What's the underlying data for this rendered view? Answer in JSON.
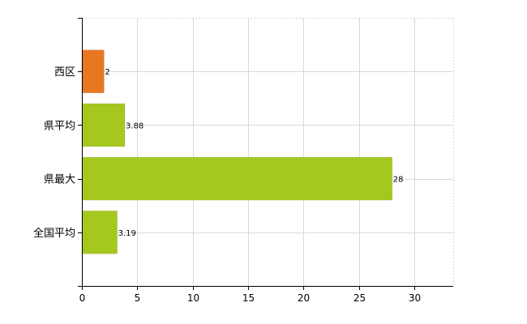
{
  "chart_data": {
    "type": "bar",
    "orientation": "horizontal",
    "categories": [
      "西区",
      "県平均",
      "県最大",
      "全国平均"
    ],
    "values": [
      2,
      3.88,
      28,
      3.19
    ],
    "data_labels": [
      "2",
      "3.88",
      "28",
      "3.19"
    ],
    "bar_colors": [
      "#e87722",
      "#a5c81e",
      "#a5c81e",
      "#a5c81e"
    ],
    "xlim": [
      0,
      33.5
    ],
    "xticks": [
      0,
      5,
      10,
      15,
      20,
      25,
      30
    ],
    "grid": true,
    "legend": "none",
    "title": "",
    "xlabel": "",
    "ylabel": ""
  }
}
